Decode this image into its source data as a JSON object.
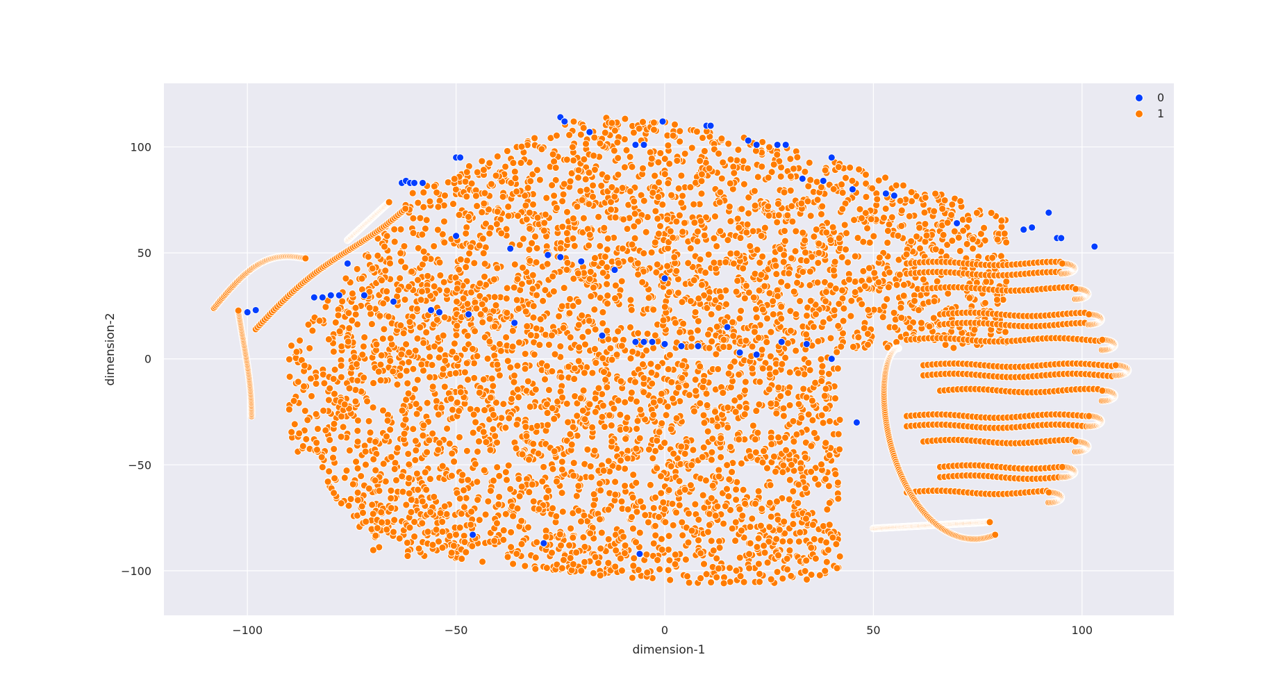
{
  "chart_data": {
    "type": "scatter",
    "title": "",
    "xlabel": "dimension-1",
    "ylabel": "dimension-2",
    "xlim": [
      -120,
      122
    ],
    "ylim": [
      -121,
      130
    ],
    "x_ticks": [
      -100,
      -50,
      0,
      50,
      100
    ],
    "y_ticks": [
      -100,
      -50,
      0,
      50,
      100
    ],
    "x_tick_labels": [
      "−100",
      "−50",
      "0",
      "50",
      "100"
    ],
    "y_tick_labels": [
      "−100",
      "−50",
      "0",
      "50",
      "100"
    ],
    "grid": true,
    "legend_placement": "top-right",
    "colors": {
      "background": "#eaeaf2",
      "grid": "#ffffff",
      "class_0": "#023eff",
      "class_1": "#ff7c00",
      "marker_edge": "#ffffff"
    },
    "series": [
      {
        "name": "0",
        "color": "#023eff",
        "points": [
          [
            -25,
            114
          ],
          [
            -24,
            112
          ],
          [
            -18,
            107
          ],
          [
            -7,
            101
          ],
          [
            -5,
            101
          ],
          [
            -0.5,
            112
          ],
          [
            10,
            110
          ],
          [
            11,
            110
          ],
          [
            20,
            103
          ],
          [
            22,
            101
          ],
          [
            27,
            101
          ],
          [
            29,
            101
          ],
          [
            40,
            95
          ],
          [
            33,
            85
          ],
          [
            38,
            84
          ],
          [
            45,
            80
          ],
          [
            53,
            78
          ],
          [
            55,
            77
          ],
          [
            -63,
            83
          ],
          [
            -62,
            84
          ],
          [
            -61,
            83
          ],
          [
            -60,
            83
          ],
          [
            -58,
            83
          ],
          [
            -50,
            95
          ],
          [
            -49,
            95
          ],
          [
            -100,
            22
          ],
          [
            -98,
            23
          ],
          [
            -84,
            29
          ],
          [
            -82,
            29
          ],
          [
            -80,
            30
          ],
          [
            -78,
            30
          ],
          [
            -76,
            45
          ],
          [
            -50,
            58
          ],
          [
            -37,
            52
          ],
          [
            -28,
            49
          ],
          [
            -25,
            48
          ],
          [
            -20,
            46
          ],
          [
            -12,
            42
          ],
          [
            0,
            38
          ],
          [
            -47,
            21
          ],
          [
            -36,
            17
          ],
          [
            -15,
            11
          ],
          [
            -7,
            8
          ],
          [
            -5,
            8
          ],
          [
            -3,
            8
          ],
          [
            0,
            7
          ],
          [
            4,
            6
          ],
          [
            8,
            6
          ],
          [
            15,
            15
          ],
          [
            18,
            3
          ],
          [
            22,
            2
          ],
          [
            28,
            8
          ],
          [
            34,
            7
          ],
          [
            40,
            0
          ],
          [
            46,
            -30
          ],
          [
            -56,
            23
          ],
          [
            -54,
            22
          ],
          [
            -65,
            27
          ],
          [
            -72,
            30
          ],
          [
            -46,
            -83
          ],
          [
            -29,
            -87
          ],
          [
            -6,
            -92
          ],
          [
            70,
            64
          ],
          [
            86,
            61
          ],
          [
            88,
            62
          ],
          [
            92,
            69
          ],
          [
            94,
            57
          ],
          [
            95,
            57
          ],
          [
            103,
            53
          ]
        ]
      },
      {
        "name": "1",
        "color": "#ff7c00",
        "points": []
      }
    ]
  },
  "legend": {
    "items": [
      {
        "label": "0",
        "color": "#023eff"
      },
      {
        "label": "1",
        "color": "#ff7c00"
      }
    ]
  }
}
